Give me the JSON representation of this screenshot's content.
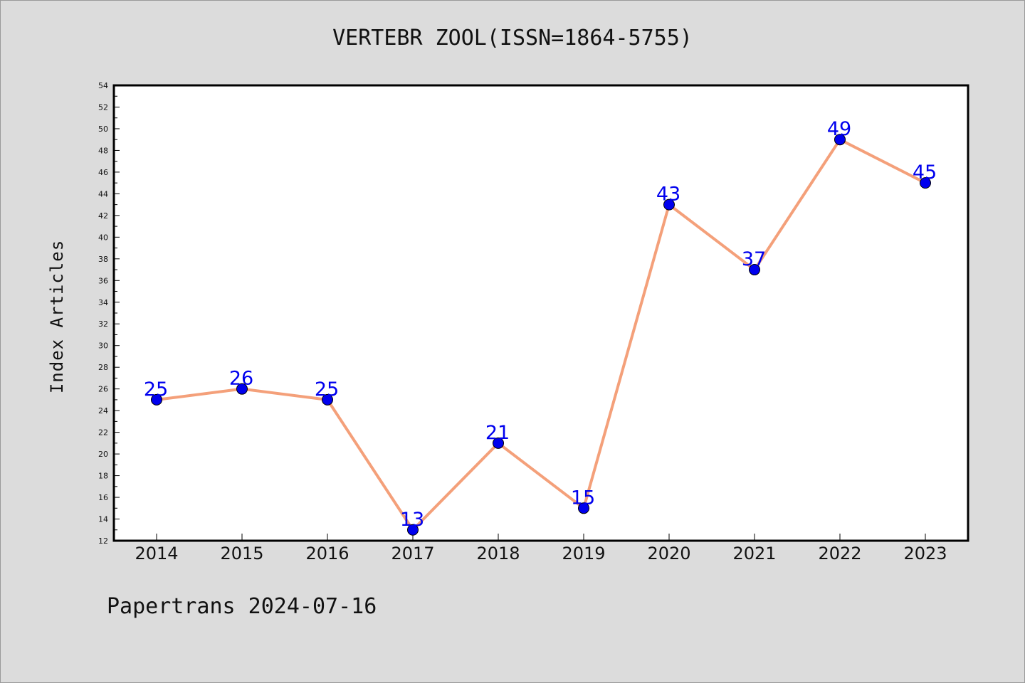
{
  "chart_data": {
    "type": "line",
    "title": "VERTEBR ZOOL(ISSN=1864-5755)",
    "xlabel": "",
    "ylabel": "Index Articles",
    "categories": [
      "2014",
      "2015",
      "2016",
      "2017",
      "2018",
      "2019",
      "2020",
      "2021",
      "2022",
      "2023"
    ],
    "series": [
      {
        "values": [
          25,
          26,
          25,
          13,
          21,
          15,
          43,
          37,
          49,
          45
        ]
      }
    ],
    "ylim": [
      12,
      54
    ],
    "y_tick_step": 2,
    "data_labels": true,
    "grid": false,
    "line_color": "#f4a07a",
    "marker_color": "#0000ee",
    "label_color": "#0000ee"
  },
  "footer": {
    "credit": "Papertrans 2024-07-16"
  }
}
